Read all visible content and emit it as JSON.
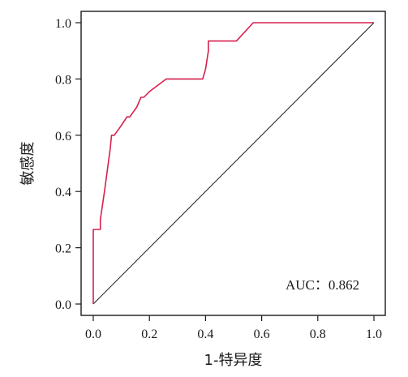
{
  "chart_data": {
    "type": "line",
    "title": "",
    "xlabel": "1-特异度",
    "ylabel": "敏感度",
    "xlim": [
      0,
      1
    ],
    "ylim": [
      0,
      1
    ],
    "x_ticks": [
      "0.0",
      "0.2",
      "0.4",
      "0.6",
      "0.8",
      "1.0"
    ],
    "y_ticks": [
      "0.0",
      "0.2",
      "0.4",
      "0.6",
      "0.8",
      "1.0"
    ],
    "grid": false,
    "legend": "none",
    "annotation": "AUC：0.862",
    "colors": {
      "roc": "#d6204e",
      "reference": "#1a1a1a",
      "axis": "#1a1a1a"
    },
    "series": [
      {
        "x": [
          0.0,
          0.0,
          0.025,
          0.025,
          0.04,
          0.06,
          0.065,
          0.075,
          0.1,
          0.12,
          0.13,
          0.155,
          0.17,
          0.18,
          0.2,
          0.26,
          0.39,
          0.4,
          0.41,
          0.41,
          0.51,
          0.57,
          1.0
        ],
        "y": [
          0.0,
          0.265,
          0.265,
          0.3,
          0.4,
          0.55,
          0.6,
          0.6,
          0.635,
          0.665,
          0.665,
          0.7,
          0.735,
          0.735,
          0.755,
          0.8,
          0.8,
          0.835,
          0.9,
          0.935,
          0.935,
          1.0,
          1.0
        ]
      },
      {
        "x": [
          0,
          1
        ],
        "y": [
          0,
          1
        ]
      }
    ]
  }
}
